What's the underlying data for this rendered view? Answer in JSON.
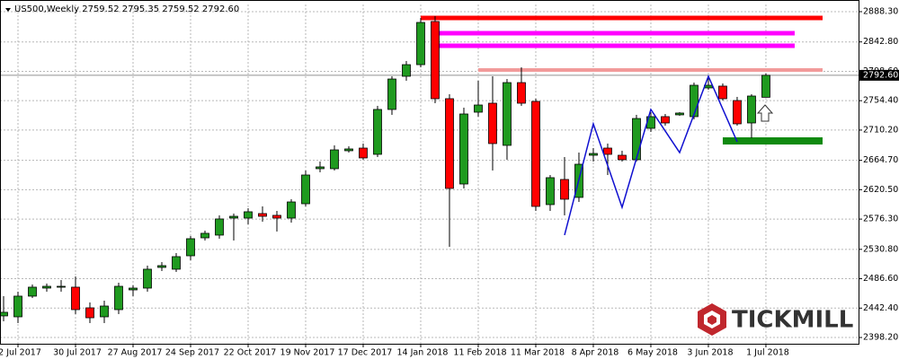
{
  "chart_data": {
    "type": "candlestick",
    "title": "US500,Weekly",
    "categories": [
      null,
      "2 Jul 2017",
      null,
      null,
      null,
      "30 Jul 2017",
      null,
      null,
      null,
      "27 Aug 2017",
      null,
      null,
      null,
      "24 Sep 2017",
      null,
      null,
      null,
      "22 Oct 2017",
      null,
      null,
      null,
      "19 Nov 2017",
      null,
      null,
      null,
      "17 Dec 2017",
      null,
      null,
      null,
      "14 Jan 2018",
      null,
      null,
      null,
      "11 Feb 2018",
      null,
      null,
      null,
      "11 Mar 2018",
      null,
      null,
      null,
      "8 Apr 2018",
      null,
      null,
      null,
      "6 May 2018",
      null,
      null,
      null,
      "3 Jun 2018",
      null,
      null,
      null,
      "1 Jul 2018"
    ],
    "open": [
      2430.7,
      2429.3,
      2460.4,
      2472.5,
      2473.9,
      2473.9,
      2442.8,
      2429.3,
      2440.1,
      2469.8,
      2472.5,
      2503.6,
      2500.9,
      2521.1,
      2548.1,
      2552.2,
      2577.8,
      2577.8,
      2584.6,
      2581.9,
      2577.8,
      2599.4,
      2652.1,
      2652.1,
      2679.1,
      2683.1,
      2673.7,
      2741.2,
      2791.1,
      2808.6,
      2873.5,
      2757.4,
      2629.1,
      2737.1,
      2750.6,
      2687.2,
      2781.6,
      2753.3,
      2598.1,
      2635.9,
      2608.9,
      2672.3,
      2683.1,
      2672.3,
      2665.6,
      2712.8,
      2730.4,
      2733.1,
      2730.4,
      2773.6,
      2776.3,
      2754.6,
      2720.9,
      2759.52
    ],
    "high": [
      2460.4,
      2467.1,
      2477.9,
      2479.3,
      2484.6,
      2490.0,
      2450.9,
      2453.6,
      2480.6,
      2476.6,
      2506.3,
      2511.6,
      2525.2,
      2550.8,
      2558.9,
      2581.9,
      2584.6,
      2592.6,
      2595.4,
      2588.6,
      2606.2,
      2649.4,
      2662.9,
      2687.2,
      2685.8,
      2689.9,
      2746.6,
      2791.1,
      2814.1,
      2878.9,
      2881.6,
      2764.1,
      2743.9,
      2784.4,
      2791.1,
      2787.0,
      2804.6,
      2757.4,
      2642.6,
      2669.6,
      2676.4,
      2683.1,
      2689.9,
      2679.1,
      2733.1,
      2737.1,
      2734.4,
      2737.1,
      2781.6,
      2789.7,
      2780.3,
      2760.1,
      2764.1,
      2795.35
    ],
    "low": [
      2422.6,
      2419.9,
      2457.6,
      2467.1,
      2467.1,
      2433.4,
      2419.9,
      2419.9,
      2433.4,
      2460.4,
      2467.1,
      2498.2,
      2496.8,
      2514.4,
      2544.1,
      2546.8,
      2544.1,
      2568.4,
      2572.4,
      2557.6,
      2571.0,
      2595.4,
      2646.7,
      2649.4,
      2676.4,
      2665.6,
      2669.6,
      2733.1,
      2784.4,
      2804.6,
      2750.6,
      2534.6,
      2622.4,
      2730.4,
      2649.4,
      2665.6,
      2746.6,
      2588.6,
      2588.6,
      2581.9,
      2602.1,
      2662.9,
      2642.6,
      2662.9,
      2662.9,
      2707.4,
      2716.9,
      2731.7,
      2726.3,
      2770.9,
      2754.6,
      2716.9,
      2698.2,
      2759.52
    ],
    "close": [
      2436.1,
      2460.4,
      2473.9,
      2475.2,
      2475.2,
      2440.1,
      2427.9,
      2445.5,
      2475.2,
      2472.5,
      2500.9,
      2506.3,
      2519.8,
      2546.8,
      2554.9,
      2576.5,
      2580.5,
      2587.3,
      2580.5,
      2577.8,
      2602.1,
      2642.6,
      2654.8,
      2680.4,
      2681.8,
      2668.3,
      2741.2,
      2787.0,
      2808.6,
      2872.1,
      2757.4,
      2622.4,
      2734.4,
      2747.9,
      2689.9,
      2781.6,
      2750.6,
      2595.4,
      2638.6,
      2606.2,
      2658.8,
      2675.0,
      2673.7,
      2665.6,
      2727.6,
      2730.4,
      2720.9,
      2735.8,
      2777.6,
      2777.6,
      2757.4,
      2719.6,
      2761.4,
      2792.6
    ],
    "up_color": "#1f9a1f",
    "down_color": "#ff0000",
    "xlim": [
      -0.25,
      59.44
    ],
    "ylim": [
      2388.8,
      2899.1
    ],
    "yticks": [
      {
        "value": 2398.2,
        "label": "2398.20"
      },
      {
        "value": 2442.4,
        "label": "2442.40"
      },
      {
        "value": 2486.6,
        "label": "2486.60"
      },
      {
        "value": 2530.8,
        "label": "2530.80"
      },
      {
        "value": 2576.3,
        "label": "2576.30"
      },
      {
        "value": 2620.5,
        "label": "2620.50"
      },
      {
        "value": 2664.7,
        "label": "2664.70"
      },
      {
        "value": 2710.2,
        "label": "2710.20"
      },
      {
        "value": 2754.4,
        "label": "2754.40"
      },
      {
        "value": 2798.6,
        "label": "2798.60"
      },
      {
        "value": 2842.8,
        "label": "2842.80"
      },
      {
        "value": 2888.3,
        "label": "2888.30"
      }
    ],
    "grid": true,
    "levels": [
      {
        "value": 2878.9,
        "color": "#ff0000",
        "x": [
          29,
          57
        ]
      },
      {
        "value": 2855.9,
        "color": "#ff00ff",
        "x": [
          30,
          55
        ]
      },
      {
        "value": 2837.0,
        "color": "#ff00ff",
        "x": [
          30,
          55
        ]
      },
      {
        "value": 2800.6,
        "color": "#f29a9a",
        "x": [
          33,
          57
        ]
      },
      {
        "value": 2693.9,
        "color": "#108a10",
        "x": [
          50,
          57
        ]
      }
    ],
    "zigzag": {
      "color": "#1010d0",
      "x": [
        39,
        41,
        43,
        45,
        47,
        49,
        51
      ],
      "values": [
        2552.2,
        2719.6,
        2594.0,
        2741.2,
        2676.4,
        2791.1,
        2692.6
      ]
    },
    "watermark": "TICKMILL"
  }
}
